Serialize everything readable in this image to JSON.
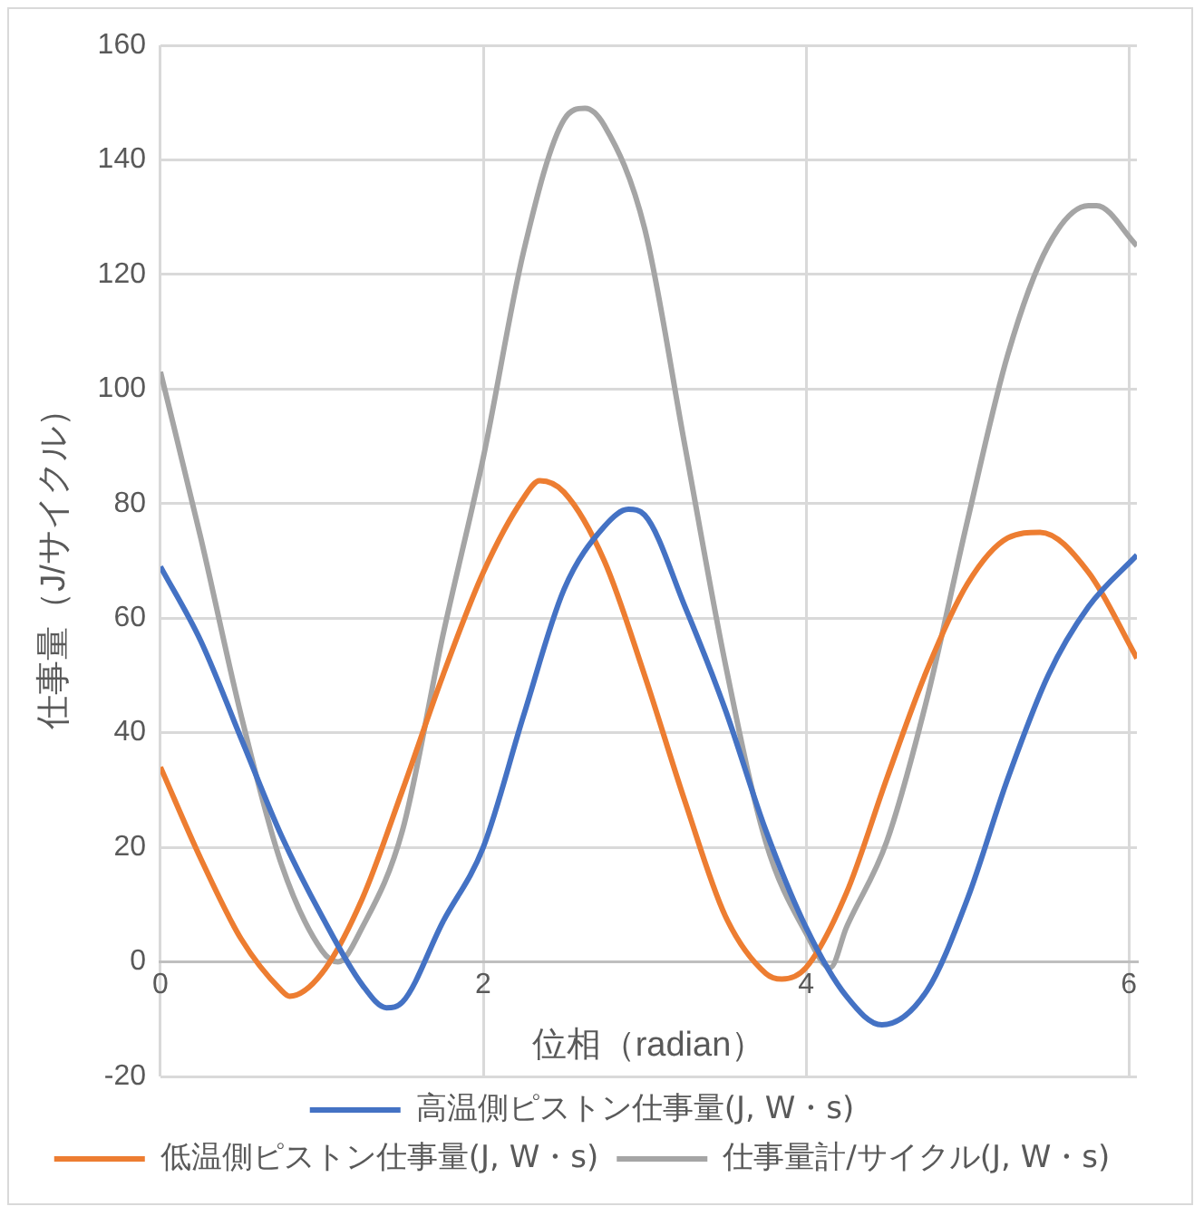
{
  "chart_data": {
    "type": "line",
    "xlabel": "位相（radian）",
    "ylabel": "仕事量（J/サイクル）",
    "xlim": [
      0,
      6.05
    ],
    "xticks": [
      0,
      2,
      4,
      6
    ],
    "ylim": [
      -20,
      160
    ],
    "yticks": [
      -20,
      0,
      20,
      40,
      60,
      80,
      100,
      120,
      140,
      160
    ],
    "grid": true,
    "legend": "bottom",
    "marker": "none",
    "line_style": "solid",
    "series": [
      {
        "name": "高温側ピストン仕事量(J, W・s)",
        "color": "#4472c4",
        "x": [
          0,
          0.25,
          0.5,
          0.75,
          1,
          1.25,
          1.4,
          1.5,
          1.75,
          2,
          2.25,
          2.5,
          2.75,
          2.9,
          3,
          3.25,
          3.5,
          3.75,
          4,
          4.25,
          4.47,
          4.75,
          5,
          5.25,
          5.5,
          5.75,
          6.05
        ],
        "values": [
          69,
          56,
          39,
          22,
          8,
          -4,
          -8,
          -7,
          7,
          20,
          43,
          65,
          76,
          79,
          78,
          62,
          44,
          23,
          6,
          -6,
          -11,
          -5,
          11,
          32,
          50,
          62,
          71
        ]
      },
      {
        "name": "低温側ピストン仕事量(J, W・s)",
        "color": "#ed7d31",
        "x": [
          0,
          0.25,
          0.5,
          0.75,
          0.8,
          1,
          1.25,
          1.5,
          1.75,
          2,
          2.25,
          2.35,
          2.5,
          2.75,
          3,
          3.25,
          3.5,
          3.75,
          3.85,
          4,
          4.25,
          4.5,
          4.75,
          5,
          5.25,
          5.45,
          5.75,
          6.05
        ],
        "values": [
          34,
          18,
          4,
          -5,
          -6,
          -2,
          11,
          30,
          50,
          68,
          81,
          84,
          82,
          70,
          50,
          28,
          8,
          -2,
          -3,
          -1,
          12,
          32,
          51,
          66,
          74,
          75,
          68,
          53
        ]
      },
      {
        "name": "仕事量計/サイクル(J, W・s)",
        "color": "#a5a5a5",
        "x": [
          0,
          0.25,
          0.5,
          0.75,
          1,
          1.1,
          1.25,
          1.5,
          1.75,
          2,
          2.25,
          2.5,
          2.63,
          2.75,
          3,
          3.25,
          3.5,
          3.75,
          4,
          4.15,
          4.25,
          4.5,
          4.75,
          5,
          5.25,
          5.5,
          5.75,
          5.8,
          6.05
        ],
        "values": [
          103,
          74,
          43,
          17,
          2,
          0,
          6,
          23,
          57,
          88,
          124,
          147,
          149,
          146,
          128,
          90,
          52,
          21,
          5,
          -1,
          6,
          21,
          46,
          77,
          106,
          125,
          132,
          132,
          125
        ]
      }
    ]
  }
}
